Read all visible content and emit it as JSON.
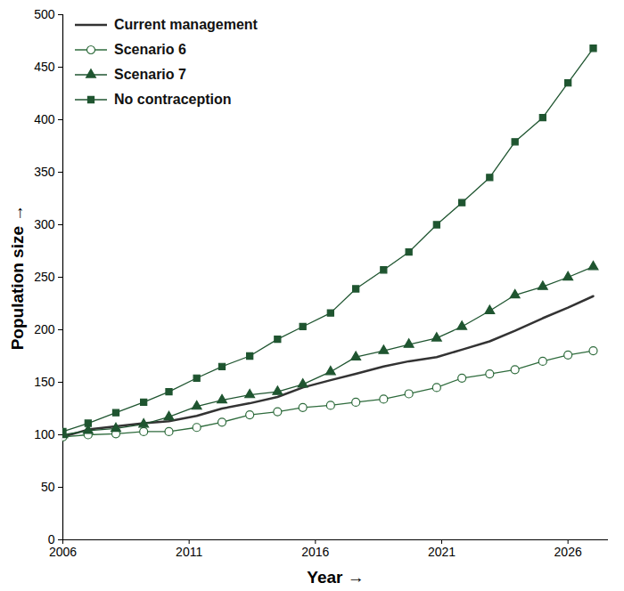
{
  "chart_data": {
    "type": "line",
    "x_label": "Year",
    "y_label": "Population size",
    "x": [
      2006,
      2007,
      2008.1,
      2009.2,
      2010.2,
      2011.3,
      2012.3,
      2013.4,
      2014.5,
      2015.5,
      2016.6,
      2017.6,
      2018.7,
      2019.7,
      2020.8,
      2021.8,
      2022.9,
      2023.9,
      2025,
      2026,
      2027
    ],
    "series": [
      {
        "name": "Current management",
        "color": "#333333",
        "marker": "none",
        "values": [
          98,
          105,
          108,
          111,
          113,
          118,
          125,
          130,
          136,
          145,
          152,
          158,
          165,
          170,
          174,
          181,
          189,
          199,
          211,
          221,
          232
        ]
      },
      {
        "name": "Scenario 6",
        "color": "#2e6b3c",
        "marker": "open_circle",
        "values": [
          98,
          100,
          101,
          103,
          103,
          107,
          112,
          119,
          122,
          126,
          128,
          131,
          134,
          139,
          145,
          154,
          158,
          162,
          170,
          176,
          180
        ]
      },
      {
        "name": "Scenario 7",
        "color": "#1f5530",
        "marker": "triangle",
        "values": [
          100,
          104,
          106,
          110,
          117,
          127,
          133,
          138,
          141,
          148,
          160,
          174,
          180,
          186,
          192,
          203,
          218,
          233,
          241,
          250,
          260
        ]
      },
      {
        "name": "No contraception",
        "color": "#1f5530",
        "marker": "square",
        "values": [
          103,
          111,
          121,
          131,
          141,
          154,
          165,
          175,
          191,
          203,
          216,
          239,
          257,
          274,
          300,
          321,
          345,
          379,
          402,
          435,
          468
        ]
      }
    ],
    "xlim": [
      2006,
      2027.6
    ],
    "xticks": [
      2006,
      2011,
      2016,
      2021,
      2026
    ],
    "ylim": [
      0,
      500
    ],
    "yticks": [
      0,
      50,
      100,
      150,
      200,
      250,
      300,
      350,
      400,
      450,
      500
    ],
    "grid": false,
    "legend": "top-left"
  }
}
